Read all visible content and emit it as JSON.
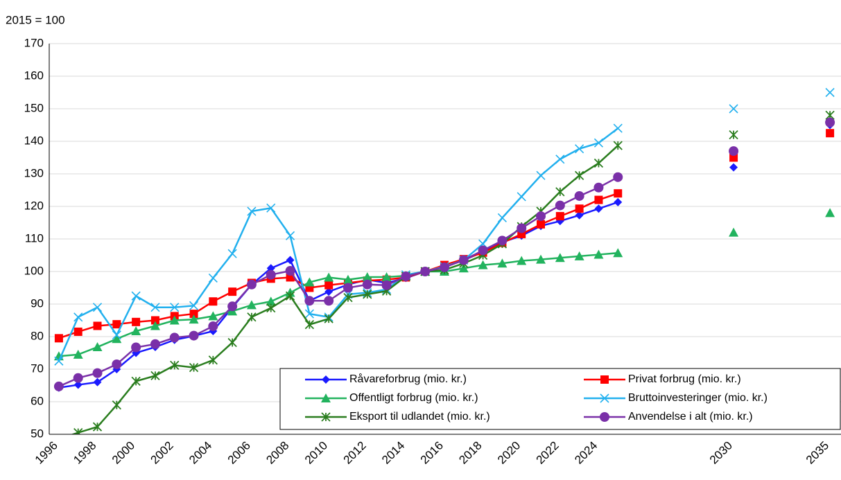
{
  "chart_data": {
    "type": "line",
    "y_axis_label": "2015 = 100",
    "categories": [
      "1996",
      null,
      "1998",
      null,
      "2000",
      null,
      "2002",
      null,
      "2004",
      null,
      "2006",
      null,
      "2008",
      null,
      "2010",
      null,
      "2012",
      null,
      "2014",
      null,
      "2016",
      null,
      "2018",
      null,
      "2020",
      null,
      "2022",
      null,
      "2024",
      null,
      null,
      null,
      null,
      null,
      null,
      "2030",
      null,
      null,
      null,
      null,
      "2035"
    ],
    "ylim": [
      50,
      170
    ],
    "yticks": [
      50,
      60,
      70,
      80,
      90,
      100,
      110,
      120,
      130,
      140,
      150,
      160,
      170
    ],
    "grid": true,
    "legend": "bottom-right",
    "series": [
      {
        "name": "Råvareforbrug (mio. kr.)",
        "color": "#1a1aff",
        "marker": "diamond",
        "values": [
          64.3,
          65.2,
          66,
          70,
          75,
          76.8,
          79,
          80.2,
          81.7,
          89,
          96,
          101,
          103.5,
          91,
          93.8,
          96,
          97.5,
          96.5,
          98,
          100,
          101.5,
          103.5,
          106,
          109,
          111,
          114,
          115.5,
          117.3,
          119.3,
          121.3,
          null,
          null,
          null,
          null,
          null,
          132,
          null,
          null,
          null,
          null,
          145
        ]
      },
      {
        "name": "Privat forbrug (mio. kr.)",
        "color": "#ff0000",
        "marker": "square",
        "values": [
          79.5,
          81.5,
          83.3,
          83.8,
          84.5,
          85,
          86.3,
          87,
          90.8,
          93.8,
          96.5,
          97.8,
          98.2,
          95,
          95.8,
          96.5,
          97.2,
          97.5,
          98.2,
          100,
          102,
          103.8,
          105.8,
          108.8,
          111.5,
          114.5,
          117,
          119.3,
          122,
          124,
          null,
          null,
          null,
          null,
          null,
          135,
          null,
          null,
          null,
          null,
          142.5
        ]
      },
      {
        "name": "Offentligt forbrug (mio. kr.)",
        "color": "#22b35e",
        "marker": "triangle",
        "values": [
          74,
          74.5,
          76.8,
          79.3,
          81.7,
          83.3,
          85,
          85.3,
          86.3,
          87.8,
          89.7,
          90.8,
          93.5,
          96.7,
          98.2,
          97.5,
          98.3,
          98.3,
          98.7,
          100,
          100,
          101,
          102,
          102.5,
          103.3,
          103.7,
          104.2,
          104.7,
          105.2,
          105.7,
          null,
          null,
          null,
          null,
          null,
          112,
          null,
          null,
          null,
          null,
          118
        ]
      },
      {
        "name": "Bruttoinvesteringer (mio. kr.)",
        "color": "#22b0ee",
        "marker": "x",
        "values": [
          72.5,
          86,
          89,
          80.5,
          92.5,
          89,
          89,
          89.5,
          98,
          105.5,
          118.5,
          119.5,
          111,
          87,
          86,
          93,
          93.5,
          94.5,
          99,
          100,
          101.5,
          103.5,
          108.5,
          116.5,
          123,
          129.5,
          134.5,
          137.7,
          139.5,
          144,
          null,
          null,
          null,
          null,
          null,
          150,
          null,
          null,
          null,
          null,
          155
        ]
      },
      {
        "name": "Eksport til udlandet (mio. kr.)",
        "color": "#2a7d1e",
        "marker": "star",
        "values": [
          48.5,
          50.5,
          52.3,
          59,
          66.3,
          68,
          71.2,
          70.5,
          72.8,
          78.2,
          86,
          88.8,
          92.5,
          83.7,
          85.5,
          92,
          93,
          94,
          98.5,
          100,
          100.5,
          102.5,
          105,
          108.5,
          113.8,
          118.5,
          124.5,
          129.5,
          133.3,
          138.7,
          null,
          null,
          null,
          null,
          null,
          142,
          null,
          null,
          null,
          null,
          148
        ]
      },
      {
        "name": "Anvendelse i alt (mio. kr.)",
        "color": "#7a30a8",
        "marker": "circle",
        "values": [
          64.7,
          67.3,
          68.8,
          71.5,
          76.7,
          77.7,
          79.7,
          80.3,
          83.2,
          89.3,
          96,
          99,
          100.2,
          91,
          91,
          95,
          96,
          95.8,
          98.5,
          100,
          101.3,
          103.5,
          106.5,
          109.5,
          113.3,
          117,
          120.3,
          123.2,
          125.8,
          129,
          null,
          null,
          null,
          null,
          null,
          137,
          null,
          null,
          null,
          null,
          145.8
        ]
      }
    ]
  }
}
